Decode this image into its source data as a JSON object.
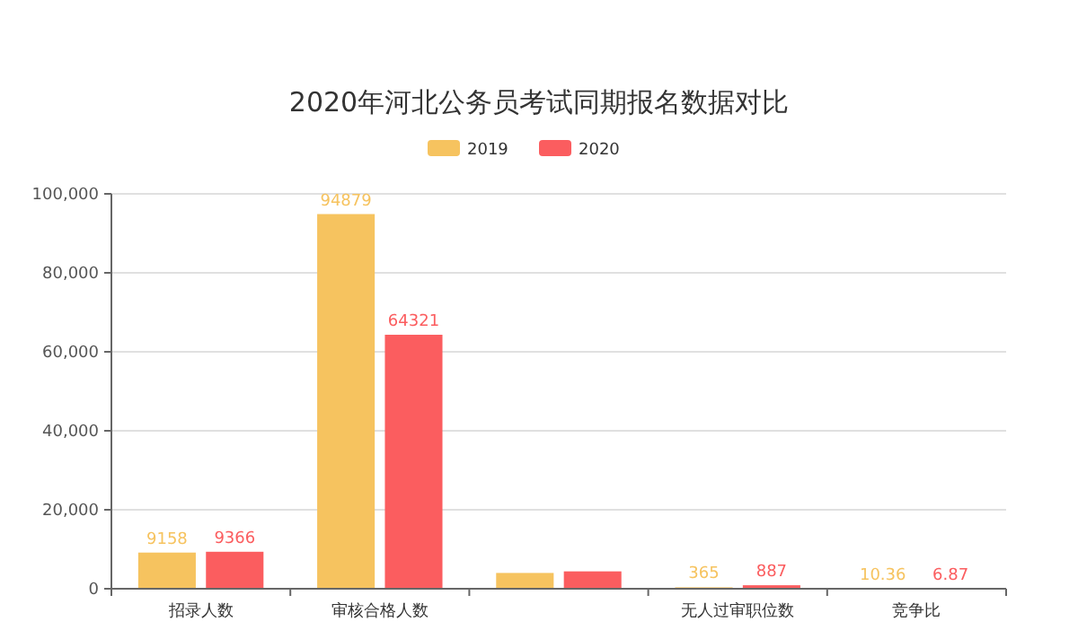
{
  "chart_data": {
    "type": "bar",
    "title": "2020年河北公务员考试同期报名数据对比",
    "categories": [
      "招录人数",
      "审核合格人数",
      null,
      "无人过审职位数",
      "竞争比"
    ],
    "series": [
      {
        "name": "2019",
        "color": "#f6c35f",
        "values": [
          9158,
          94879,
          4000,
          365,
          10.36
        ],
        "value_labels": [
          "9158",
          "94879",
          null,
          "365",
          "10.36"
        ]
      },
      {
        "name": "2020",
        "color": "#fb5d5f",
        "values": [
          9366,
          64321,
          4400,
          887,
          6.87
        ],
        "value_labels": [
          "9366",
          "64321",
          null,
          "887",
          "6.87"
        ]
      }
    ],
    "ylim": [
      0,
      100000
    ],
    "yticks": [
      {
        "value": 0,
        "label": "0"
      },
      {
        "value": 20000,
        "label": "20,000"
      },
      {
        "value": 40000,
        "label": "40,000"
      },
      {
        "value": 60000,
        "label": "60,000"
      },
      {
        "value": 80000,
        "label": "80,000"
      },
      {
        "value": 100000,
        "label": "100,000"
      }
    ],
    "grid": "y",
    "legend": "top"
  }
}
